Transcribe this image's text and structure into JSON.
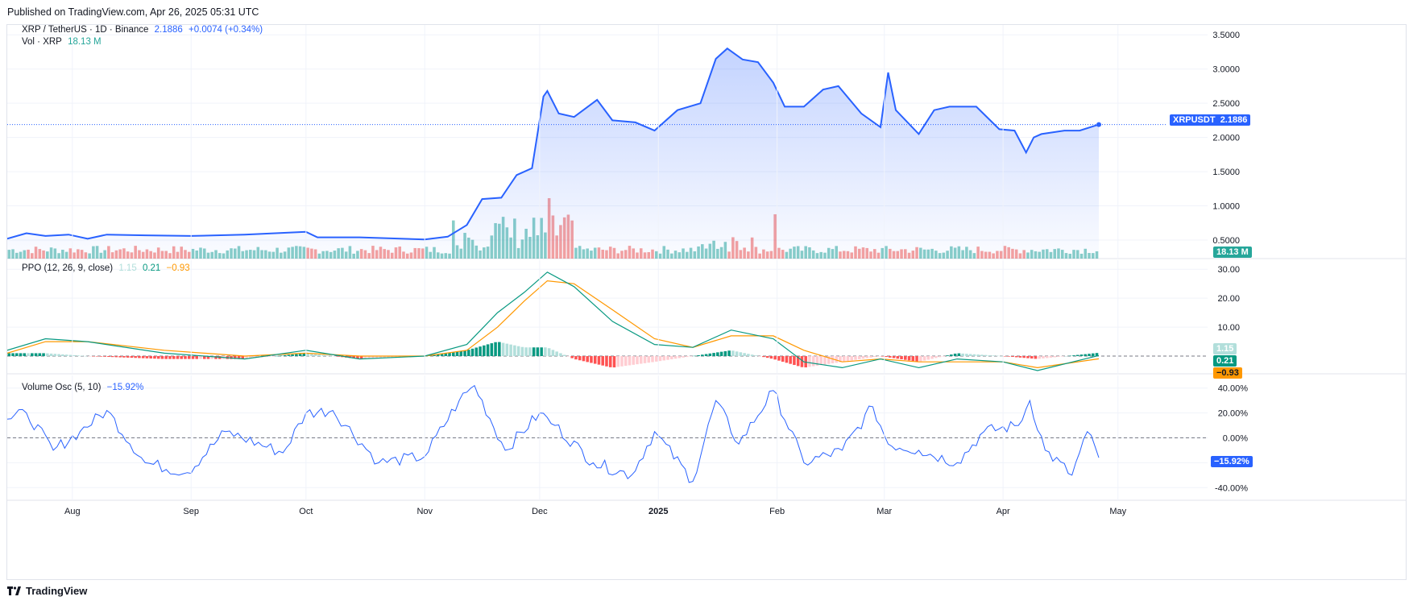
{
  "header": {
    "published": "Published on TradingView.com, Apr 26, 2025 05:31 UTC"
  },
  "legend": {
    "symbol": "XRP / TetherUS · 1D · Binance",
    "price": "2.1886",
    "change": "+0.0074 (+0.34%)",
    "vol_label": "Vol · XRP",
    "vol_value": "18.13 M",
    "ppo_label": "PPO (12, 26, 9, close)",
    "ppo_hist": "1.15",
    "ppo_line": "0.21",
    "ppo_signal": "−0.93",
    "vosc_label": "Volume Osc (5, 10)",
    "vosc_value": "−15.92%"
  },
  "badges": {
    "symbol_tag": "XRPUSDT",
    "price": "2.1886",
    "volume": "18.13 M",
    "ppo_hist": "1.15",
    "ppo_line": "0.21",
    "ppo_signal": "−0.93",
    "vosc": "−15.92%"
  },
  "footer": {
    "brand": "TradingView"
  },
  "colors": {
    "price_line": "#2962ff",
    "vol_up": "#26a69a",
    "vol_down": "#ef5350",
    "ppo_line": "#089981",
    "ppo_signal": "#ff9800",
    "vosc_line": "#2962ff"
  },
  "chart_data": [
    {
      "type": "area",
      "title": "XRP / TetherUS · 1D · Binance",
      "x_ticks": [
        "Aug",
        "Sep",
        "Oct",
        "Nov",
        "Dec",
        "2025",
        "Feb",
        "Mar",
        "Apr",
        "May"
      ],
      "y_ticks": [
        "0.5000",
        "1.0000",
        "1.5000",
        "2.0000",
        "2.5000",
        "3.0000",
        "3.5000"
      ],
      "ylim": [
        0.3,
        3.55
      ],
      "x": [
        "2024-07-15",
        "2024-07-20",
        "2024-07-25",
        "2024-07-31",
        "2024-08-05",
        "2024-08-10",
        "2024-08-20",
        "2024-09-01",
        "2024-09-15",
        "2024-10-01",
        "2024-10-04",
        "2024-10-15",
        "2024-11-01",
        "2024-11-07",
        "2024-11-12",
        "2024-11-16",
        "2024-11-21",
        "2024-11-25",
        "2024-11-29",
        "2024-12-02",
        "2024-12-03",
        "2024-12-06",
        "2024-12-10",
        "2024-12-16",
        "2024-12-20",
        "2024-12-26",
        "2024-12-31",
        "2025-01-06",
        "2025-01-12",
        "2025-01-16",
        "2025-01-19",
        "2025-01-23",
        "2025-01-27",
        "2025-01-31",
        "2025-02-03",
        "2025-02-08",
        "2025-02-13",
        "2025-02-17",
        "2025-02-23",
        "2025-02-28",
        "2025-03-02",
        "2025-03-04",
        "2025-03-10",
        "2025-03-14",
        "2025-03-18",
        "2025-03-25",
        "2025-03-31",
        "2025-04-04",
        "2025-04-07",
        "2025-04-09",
        "2025-04-11",
        "2025-04-17",
        "2025-04-21",
        "2025-04-26"
      ],
      "series": [
        {
          "values": [
            0.52,
            0.6,
            0.56,
            0.58,
            0.52,
            0.58,
            0.57,
            0.56,
            0.58,
            0.62,
            0.54,
            0.54,
            0.51,
            0.55,
            0.72,
            1.1,
            1.12,
            1.45,
            1.55,
            2.6,
            2.68,
            2.35,
            2.3,
            2.55,
            2.25,
            2.22,
            2.1,
            2.4,
            2.5,
            3.15,
            3.3,
            3.14,
            3.1,
            2.8,
            2.45,
            2.45,
            2.7,
            2.75,
            2.35,
            2.15,
            2.95,
            2.4,
            2.05,
            2.4,
            2.45,
            2.45,
            2.12,
            2.1,
            1.78,
            2.0,
            2.05,
            2.1,
            2.1,
            2.1886
          ]
        }
      ]
    },
    {
      "type": "bar",
      "title": "Vol · XRP",
      "series": [
        {
          "name": "Vol · XRP",
          "last": 18.13
        }
      ]
    },
    {
      "type": "line",
      "title": "PPO (12, 26, 9, close)",
      "y_ticks": [
        "10.00",
        "20.00",
        "30.00"
      ],
      "ylim": [
        -5,
        32
      ],
      "x": [
        "2024-07-15",
        "2024-07-25",
        "2024-08-05",
        "2024-08-25",
        "2024-09-15",
        "2024-10-01",
        "2024-10-15",
        "2024-11-01",
        "2024-11-12",
        "2024-11-20",
        "2024-11-27",
        "2024-12-03",
        "2024-12-10",
        "2024-12-20",
        "2024-12-31",
        "2025-01-10",
        "2025-01-20",
        "2025-01-31",
        "2025-02-08",
        "2025-02-18",
        "2025-02-28",
        "2025-03-10",
        "2025-03-20",
        "2025-04-01",
        "2025-04-10",
        "2025-04-26"
      ],
      "series": [
        {
          "name": "PPO",
          "values": [
            2,
            6,
            5,
            1,
            -1,
            2,
            -1,
            0,
            4,
            15,
            22,
            29,
            24,
            12,
            4,
            3,
            9,
            6,
            -2,
            -4,
            -1,
            -4,
            -1,
            -2,
            -5,
            0.21
          ]
        },
        {
          "name": "Signal",
          "values": [
            1,
            5,
            5,
            2,
            0,
            1,
            0,
            0,
            2,
            10,
            19,
            26,
            25,
            16,
            6,
            3,
            7,
            7,
            2,
            -2,
            -1,
            -2,
            -2,
            -2,
            -4,
            -0.93
          ]
        }
      ]
    },
    {
      "type": "line",
      "title": "Volume Osc (5, 10)",
      "y_ticks": [
        "-40.00%",
        "-20.00%",
        "0.00%",
        "20.00%",
        "40.00%"
      ],
      "ylim": [
        -45,
        45
      ],
      "x": [
        "2024-07-15",
        "2024-07-20",
        "2024-07-27",
        "2024-08-03",
        "2024-08-10",
        "2024-08-20",
        "2024-08-31",
        "2024-09-10",
        "2024-09-25",
        "2024-10-01",
        "2024-10-08",
        "2024-10-20",
        "2024-11-01",
        "2024-11-10",
        "2024-11-14",
        "2024-11-22",
        "2024-12-01",
        "2024-12-05",
        "2024-12-15",
        "2024-12-25",
        "2024-12-31",
        "2025-01-10",
        "2025-01-16",
        "2025-01-22",
        "2025-01-31",
        "2025-02-08",
        "2025-02-18",
        "2025-02-26",
        "2025-03-02",
        "2025-03-10",
        "2025-03-20",
        "2025-03-27",
        "2025-04-05",
        "2025-04-08",
        "2025-04-12",
        "2025-04-19",
        "2025-04-23",
        "2025-04-26"
      ],
      "series": [
        {
          "name": "Volume Osc",
          "values": [
            15,
            20,
            -10,
            5,
            22,
            -20,
            -28,
            5,
            -12,
            20,
            22,
            -20,
            -15,
            30,
            42,
            -10,
            20,
            10,
            -20,
            -30,
            5,
            -35,
            30,
            -5,
            38,
            -20,
            -10,
            25,
            -5,
            -10,
            -20,
            5,
            10,
            30,
            -10,
            -30,
            5,
            -15.92
          ]
        }
      ]
    }
  ]
}
